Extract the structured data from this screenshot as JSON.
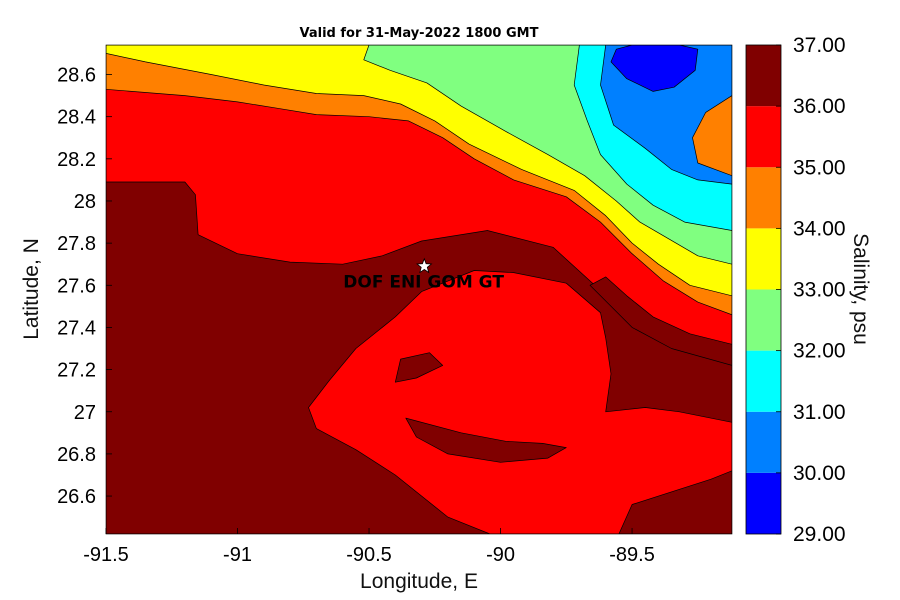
{
  "chart_data": {
    "type": "heatmap",
    "subtype": "filled-contour",
    "title": "Valid for 31-May-2022 1800 GMT",
    "xlabel": "Longitude, E",
    "ylabel": "Latitude, N",
    "colorbar_label": "Salinity, psu",
    "xlim": [
      -91.5,
      -89.12
    ],
    "ylim": [
      26.42,
      28.74
    ],
    "x_ticks": [
      {
        "value": -91.5,
        "label": "-91.5"
      },
      {
        "value": -91.0,
        "label": "-91"
      },
      {
        "value": -90.5,
        "label": "-90.5"
      },
      {
        "value": -90.0,
        "label": "-90"
      },
      {
        "value": -89.5,
        "label": "-89.5"
      }
    ],
    "y_ticks": [
      {
        "value": 26.6,
        "label": "26.6"
      },
      {
        "value": 26.8,
        "label": "26.8"
      },
      {
        "value": 27.0,
        "label": "27"
      },
      {
        "value": 27.2,
        "label": "27.2"
      },
      {
        "value": 27.4,
        "label": "27.4"
      },
      {
        "value": 27.6,
        "label": "27.6"
      },
      {
        "value": 27.8,
        "label": "27.8"
      },
      {
        "value": 28.0,
        "label": "28"
      },
      {
        "value": 28.2,
        "label": "28.2"
      },
      {
        "value": 28.4,
        "label": "28.4"
      },
      {
        "value": 28.6,
        "label": "28.6"
      }
    ],
    "levels": [
      {
        "min": 29.0,
        "max": 30.0,
        "color": "#0000ff"
      },
      {
        "min": 30.0,
        "max": 31.0,
        "color": "#0080ff"
      },
      {
        "min": 31.0,
        "max": 32.0,
        "color": "#00ffff"
      },
      {
        "min": 32.0,
        "max": 33.0,
        "color": "#80ff80"
      },
      {
        "min": 33.0,
        "max": 34.0,
        "color": "#ffff00"
      },
      {
        "min": 34.0,
        "max": 35.0,
        "color": "#ff8000"
      },
      {
        "min": 35.0,
        "max": 36.0,
        "color": "#ff0000"
      },
      {
        "min": 36.0,
        "max": 37.0,
        "color": "#800000"
      }
    ],
    "colorbar_ticks": [
      "29.00",
      "30.00",
      "31.00",
      "32.00",
      "33.00",
      "34.00",
      "35.00",
      "36.00",
      "37.00"
    ],
    "regions": [
      {
        "level": 6,
        "points": [
          [
            -91.5,
            28.74
          ],
          [
            -89.12,
            28.74
          ],
          [
            -89.12,
            26.42
          ],
          [
            -91.5,
            26.42
          ]
        ]
      },
      {
        "level": 7,
        "points": [
          [
            -91.5,
            28.09
          ],
          [
            -91.35,
            28.09
          ],
          [
            -91.2,
            28.09
          ],
          [
            -91.16,
            28.03
          ],
          [
            -91.15,
            27.84
          ],
          [
            -91.0,
            27.75
          ],
          [
            -90.8,
            27.71
          ],
          [
            -90.6,
            27.7
          ],
          [
            -90.45,
            27.74
          ],
          [
            -90.3,
            27.81
          ],
          [
            -90.05,
            27.86
          ],
          [
            -89.8,
            27.78
          ],
          [
            -89.65,
            27.61
          ],
          [
            -89.5,
            27.45
          ],
          [
            -89.35,
            27.35
          ],
          [
            -89.12,
            27.26
          ],
          [
            -89.12,
            26.42
          ],
          [
            -91.5,
            26.42
          ]
        ]
      },
      {
        "level": 6,
        "points": [
          [
            -90.7,
            26.92
          ],
          [
            -90.73,
            27.02
          ],
          [
            -90.65,
            27.15
          ],
          [
            -90.55,
            27.3
          ],
          [
            -90.4,
            27.45
          ],
          [
            -90.3,
            27.57
          ],
          [
            -90.1,
            27.67
          ],
          [
            -89.95,
            27.66
          ],
          [
            -89.75,
            27.61
          ],
          [
            -89.62,
            27.47
          ],
          [
            -89.6,
            27.35
          ],
          [
            -89.58,
            27.18
          ],
          [
            -89.6,
            27.0
          ],
          [
            -89.45,
            27.02
          ],
          [
            -89.32,
            27.0
          ],
          [
            -89.12,
            26.95
          ],
          [
            -89.12,
            26.72
          ],
          [
            -89.2,
            26.68
          ],
          [
            -89.5,
            26.56
          ],
          [
            -89.55,
            26.42
          ],
          [
            -90.04,
            26.42
          ],
          [
            -90.2,
            26.5
          ],
          [
            -90.4,
            26.7
          ],
          [
            -90.55,
            26.82
          ]
        ]
      },
      {
        "level": 7,
        "points": [
          [
            -90.38,
            27.25
          ],
          [
            -90.27,
            27.28
          ],
          [
            -90.22,
            27.22
          ],
          [
            -90.32,
            27.16
          ],
          [
            -90.4,
            27.14
          ]
        ]
      },
      {
        "level": 7,
        "points": [
          [
            -90.36,
            26.97
          ],
          [
            -90.15,
            26.9
          ],
          [
            -89.98,
            26.86
          ],
          [
            -89.84,
            26.85
          ],
          [
            -89.75,
            26.83
          ],
          [
            -89.82,
            26.78
          ],
          [
            -90.0,
            26.76
          ],
          [
            -90.2,
            26.8
          ],
          [
            -90.32,
            26.88
          ]
        ]
      },
      {
        "level": 7,
        "points": [
          [
            -89.66,
            27.6
          ],
          [
            -89.6,
            27.64
          ],
          [
            -89.52,
            27.55
          ],
          [
            -89.42,
            27.45
          ],
          [
            -89.28,
            27.37
          ],
          [
            -89.12,
            27.32
          ],
          [
            -89.12,
            27.22
          ],
          [
            -89.35,
            27.3
          ],
          [
            -89.5,
            27.4
          ]
        ]
      },
      {
        "level": 5,
        "points": [
          [
            -91.5,
            28.74
          ],
          [
            -91.5,
            28.53
          ],
          [
            -91.2,
            28.5
          ],
          [
            -91.0,
            28.47
          ],
          [
            -90.85,
            28.44
          ],
          [
            -90.7,
            28.41
          ],
          [
            -90.5,
            28.4
          ],
          [
            -90.35,
            28.38
          ],
          [
            -90.22,
            28.3
          ],
          [
            -90.1,
            28.2
          ],
          [
            -89.95,
            28.1
          ],
          [
            -89.75,
            28.02
          ],
          [
            -89.62,
            27.9
          ],
          [
            -89.5,
            27.75
          ],
          [
            -89.38,
            27.62
          ],
          [
            -89.25,
            27.52
          ],
          [
            -89.12,
            27.46
          ],
          [
            -89.12,
            28.74
          ]
        ]
      },
      {
        "level": 4,
        "points": [
          [
            -91.5,
            28.74
          ],
          [
            -91.5,
            28.7
          ],
          [
            -91.35,
            28.66
          ],
          [
            -91.1,
            28.6
          ],
          [
            -90.9,
            28.55
          ],
          [
            -90.7,
            28.51
          ],
          [
            -90.52,
            28.5
          ],
          [
            -90.38,
            28.46
          ],
          [
            -90.25,
            28.38
          ],
          [
            -90.12,
            28.27
          ],
          [
            -89.92,
            28.15
          ],
          [
            -89.72,
            28.05
          ],
          [
            -89.6,
            27.93
          ],
          [
            -89.5,
            27.8
          ],
          [
            -89.4,
            27.7
          ],
          [
            -89.28,
            27.6
          ],
          [
            -89.12,
            27.55
          ],
          [
            -89.12,
            28.74
          ]
        ]
      },
      {
        "level": 3,
        "points": [
          [
            -90.5,
            28.74
          ],
          [
            -90.52,
            28.67
          ],
          [
            -90.42,
            28.62
          ],
          [
            -90.28,
            28.56
          ],
          [
            -90.15,
            28.45
          ],
          [
            -89.98,
            28.33
          ],
          [
            -89.82,
            28.22
          ],
          [
            -89.68,
            28.12
          ],
          [
            -89.56,
            28.0
          ],
          [
            -89.47,
            27.9
          ],
          [
            -89.36,
            27.82
          ],
          [
            -89.25,
            27.74
          ],
          [
            -89.12,
            27.7
          ],
          [
            -89.12,
            28.74
          ]
        ]
      },
      {
        "level": 2,
        "points": [
          [
            -89.7,
            28.74
          ],
          [
            -89.72,
            28.55
          ],
          [
            -89.67,
            28.38
          ],
          [
            -89.62,
            28.22
          ],
          [
            -89.52,
            28.08
          ],
          [
            -89.42,
            27.98
          ],
          [
            -89.3,
            27.9
          ],
          [
            -89.12,
            27.86
          ],
          [
            -89.12,
            28.74
          ]
        ]
      },
      {
        "level": 1,
        "points": [
          [
            -89.6,
            28.74
          ],
          [
            -89.62,
            28.55
          ],
          [
            -89.57,
            28.36
          ],
          [
            -89.45,
            28.25
          ],
          [
            -89.35,
            28.15
          ],
          [
            -89.25,
            28.1
          ],
          [
            -89.12,
            28.08
          ],
          [
            -89.12,
            28.74
          ]
        ]
      },
      {
        "level": 0,
        "points": [
          [
            -89.58,
            28.66
          ],
          [
            -89.52,
            28.58
          ],
          [
            -89.42,
            28.52
          ],
          [
            -89.34,
            28.54
          ],
          [
            -89.26,
            28.62
          ],
          [
            -89.25,
            28.72
          ],
          [
            -89.32,
            28.74
          ],
          [
            -89.5,
            28.74
          ],
          [
            -89.56,
            28.72
          ]
        ]
      },
      {
        "level": 5,
        "points": [
          [
            -89.12,
            28.5
          ],
          [
            -89.22,
            28.42
          ],
          [
            -89.27,
            28.3
          ],
          [
            -89.25,
            28.18
          ],
          [
            -89.12,
            28.12
          ]
        ]
      }
    ],
    "marker": {
      "x": -90.29,
      "y": 27.69,
      "label": "DOF ENI GOM GT"
    },
    "grid": false
  }
}
